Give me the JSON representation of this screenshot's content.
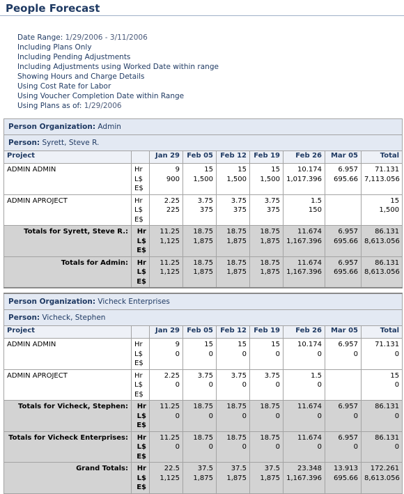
{
  "header": {
    "title": "People Forecast"
  },
  "criteria": [
    {
      "label": "Date Range:",
      "value": "1/29/2006 - 3/11/2006"
    },
    {
      "label": "Including Plans Only"
    },
    {
      "label": "Including Pending Adjustments"
    },
    {
      "label": "Including Adjustments using Worked Date within range"
    },
    {
      "label": "Showing Hours and Charge Details"
    },
    {
      "label": "Using Cost Rate for Labor"
    },
    {
      "label": "Using Voucher Completion Date within Range"
    },
    {
      "label": "Using Plans as of:",
      "value": "1/29/2006"
    }
  ],
  "table": {
    "columns": [
      "Project",
      "Jan 29",
      "Feb 05",
      "Feb 12",
      "Feb 19",
      "Feb 26",
      "Mar 05",
      "Total"
    ],
    "units": [
      "Hr",
      "L$",
      "E$"
    ],
    "sections": [
      {
        "org_label": "Person Organization:",
        "org": "Admin",
        "person_label": "Person:",
        "person": "Syrett, Steve R.",
        "rows": [
          {
            "name": "ADMIN ADMIN",
            "hr": [
              9,
              15,
              15,
              15,
              10.174,
              6.957,
              71.131
            ],
            "ls": [
              900,
              "1,500",
              "1,500",
              "1,500",
              "1,017.396",
              695.66,
              "7,113.056"
            ]
          },
          {
            "name": "ADMIN APROJECT",
            "hr": [
              2.25,
              3.75,
              3.75,
              3.75,
              1.5,
              null,
              15
            ],
            "ls": [
              225,
              375,
              375,
              375,
              150,
              null,
              "1,500"
            ]
          }
        ],
        "person_total": {
          "name": "Totals for Syrett, Steve R.:",
          "hr": [
            11.25,
            18.75,
            18.75,
            18.75,
            11.674,
            6.957,
            86.131
          ],
          "ls": [
            "1,125",
            "1,875",
            "1,875",
            "1,875",
            "1,167.396",
            695.66,
            "8,613.056"
          ]
        },
        "org_total": {
          "name": "Totals for Admin:",
          "hr": [
            11.25,
            18.75,
            18.75,
            18.75,
            11.674,
            6.957,
            86.131
          ],
          "ls": [
            "1,125",
            "1,875",
            "1,875",
            "1,875",
            "1,167.396",
            695.66,
            "8,613.056"
          ]
        }
      },
      {
        "org_label": "Person Organization:",
        "org": "Vicheck Enterprises",
        "person_label": "Person:",
        "person": "Vicheck, Stephen",
        "rows": [
          {
            "name": "ADMIN ADMIN",
            "hr": [
              9,
              15,
              15,
              15,
              10.174,
              6.957,
              71.131
            ],
            "ls": [
              0,
              0,
              0,
              0,
              0,
              0,
              0
            ]
          },
          {
            "name": "ADMIN APROJECT",
            "hr": [
              2.25,
              3.75,
              3.75,
              3.75,
              1.5,
              null,
              15
            ],
            "ls": [
              0,
              0,
              0,
              0,
              0,
              null,
              0
            ]
          }
        ],
        "person_total": {
          "name": "Totals for Vicheck, Stephen:",
          "hr": [
            11.25,
            18.75,
            18.75,
            18.75,
            11.674,
            6.957,
            86.131
          ],
          "ls": [
            0,
            0,
            0,
            0,
            0,
            0,
            0
          ]
        },
        "org_total": {
          "name": "Totals for Vicheck Enterprises:",
          "hr": [
            11.25,
            18.75,
            18.75,
            18.75,
            11.674,
            6.957,
            86.131
          ],
          "ls": [
            0,
            0,
            0,
            0,
            0,
            0,
            0
          ]
        }
      }
    ],
    "grand_total": {
      "name": "Grand Totals:",
      "hr": [
        22.5,
        37.5,
        37.5,
        37.5,
        23.348,
        13.913,
        172.261
      ],
      "ls": [
        "1,125",
        "1,875",
        "1,875",
        "1,875",
        "1,167.396",
        695.66,
        "8,613.056"
      ]
    }
  }
}
